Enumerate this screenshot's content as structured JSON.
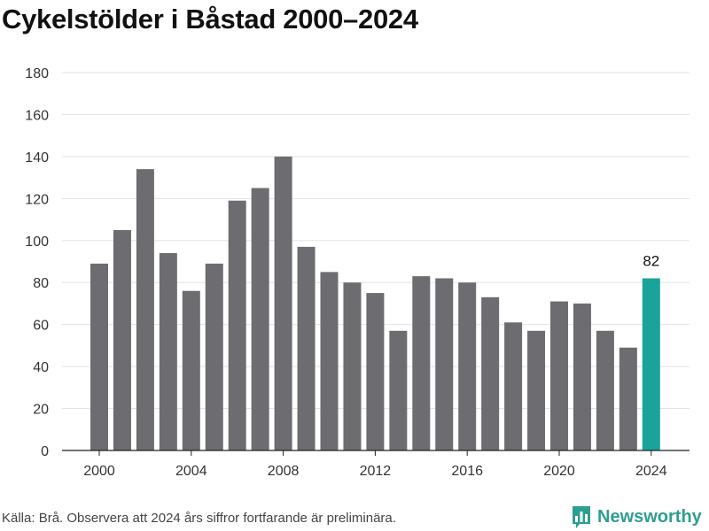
{
  "title": "Cykelstölder i Båstad 2000–2024",
  "source_note": "Källa: Brå. Observera att 2024 års siffror fortfarande är preliminära.",
  "brand": {
    "name": "Newsworthy",
    "icon": "bar-chart-logo-icon",
    "color": "#2e9e90"
  },
  "chart_data": {
    "type": "bar",
    "title": "Cykelstölder i Båstad 2000–2024",
    "xlabel": "",
    "ylabel": "",
    "categories": [
      2000,
      2001,
      2002,
      2003,
      2004,
      2005,
      2006,
      2007,
      2008,
      2009,
      2010,
      2011,
      2012,
      2013,
      2014,
      2015,
      2016,
      2017,
      2018,
      2019,
      2020,
      2021,
      2022,
      2023,
      2024
    ],
    "values": [
      89,
      105,
      134,
      94,
      76,
      89,
      119,
      125,
      140,
      97,
      85,
      80,
      75,
      57,
      83,
      82,
      80,
      73,
      61,
      57,
      71,
      70,
      57,
      49,
      82
    ],
    "ylim": [
      0,
      180
    ],
    "y_ticks": [
      0,
      20,
      40,
      60,
      80,
      100,
      120,
      140,
      160,
      180
    ],
    "x_ticks": [
      2000,
      2004,
      2008,
      2012,
      2016,
      2020,
      2024
    ],
    "grid": true,
    "bar_color": "#6d6c71",
    "highlight_color": "#1aa39a",
    "highlight_category": 2024,
    "data_labels": [
      {
        "category": 2024,
        "text": "82"
      }
    ]
  }
}
